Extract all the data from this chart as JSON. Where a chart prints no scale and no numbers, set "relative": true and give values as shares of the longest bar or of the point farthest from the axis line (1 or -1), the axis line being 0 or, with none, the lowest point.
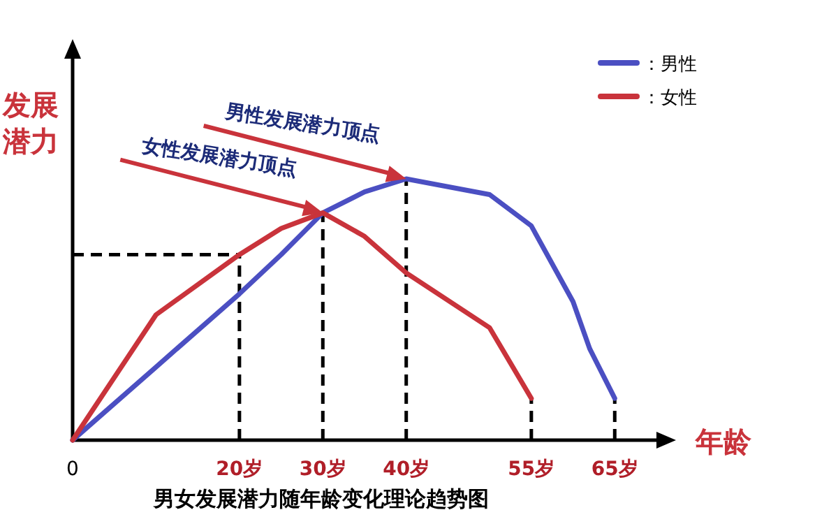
{
  "chart_data": {
    "type": "line",
    "title": "男女发展潜力随年龄变化理论趋势图",
    "xlabel": "年龄",
    "ylabel": "发展潜力",
    "relative": true,
    "xlim": [
      0,
      70
    ],
    "xticks": [
      0,
      {
        "value": 20,
        "label": "20岁"
      },
      {
        "value": 30,
        "label": "30岁"
      },
      {
        "value": 40,
        "label": "40岁"
      },
      {
        "value": 55,
        "label": "55岁"
      },
      {
        "value": 65,
        "label": "65岁"
      }
    ],
    "series": [
      {
        "name": "：男性",
        "color": "#4b4fc2",
        "x": [
          0,
          10,
          20,
          25,
          30,
          35,
          40,
          50,
          55,
          60,
          62,
          65
        ],
        "values": [
          0,
          0.28,
          0.56,
          0.71,
          0.87,
          0.95,
          1,
          0.94,
          0.82,
          0.53,
          0.35,
          0.16
        ]
      },
      {
        "name": "：女性",
        "color": "#c9333b",
        "x": [
          0,
          10,
          20,
          25,
          30,
          35,
          40,
          50,
          55
        ],
        "values": [
          0,
          0.48,
          0.71,
          0.81,
          0.87,
          0.78,
          0.64,
          0.43,
          0.16
        ]
      },
      {
        "color": "#000000",
        "line_style": "dashed",
        "x": [
          0,
          20
        ],
        "values": [
          0.71,
          0.71
        ]
      },
      {
        "color": "#000000",
        "line_style": "dashed",
        "x": [
          20,
          20
        ],
        "values": [
          0,
          0.71
        ]
      },
      {
        "color": "#000000",
        "line_style": "dashed",
        "x": [
          30,
          30
        ],
        "values": [
          0,
          0.87
        ]
      },
      {
        "color": "#000000",
        "line_style": "dashed",
        "x": [
          40,
          40
        ],
        "values": [
          0,
          1
        ]
      },
      {
        "color": "#000000",
        "line_style": "dashed",
        "x": [
          55,
          55
        ],
        "values": [
          0,
          0.16
        ]
      },
      {
        "color": "#000000",
        "line_style": "dashed",
        "x": [
          65,
          65
        ],
        "values": [
          0,
          0.16
        ]
      }
    ],
    "annotations": [
      {
        "text": "女性发展潜力顶点",
        "x": 30,
        "y": 0.87
      },
      {
        "text": "男性发展潜力顶点",
        "x": 40,
        "y": 1
      }
    ],
    "legend": "top right",
    "line_style": "solid"
  }
}
